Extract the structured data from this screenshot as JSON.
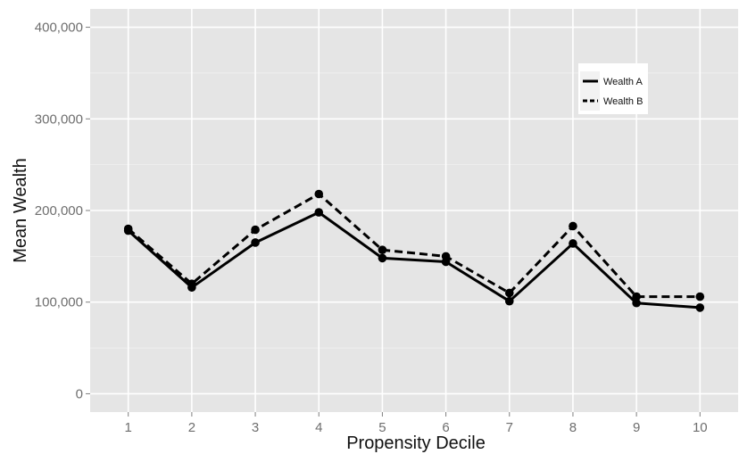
{
  "chart_data": {
    "type": "line",
    "title": "",
    "xlabel": "Propensity Decile",
    "ylabel": "Mean Wealth",
    "x": [
      1,
      2,
      3,
      4,
      5,
      6,
      7,
      8,
      9,
      10
    ],
    "x_tick_labels": [
      "1",
      "2",
      "3",
      "4",
      "5",
      "6",
      "7",
      "8",
      "9",
      "10"
    ],
    "y_ticks": [
      0,
      100000,
      200000,
      300000,
      400000
    ],
    "y_tick_labels": [
      "0",
      "100,000",
      "200,000",
      "300,000",
      "400,000"
    ],
    "ylim": [
      -20000,
      420000
    ],
    "xlim": [
      0.4,
      10.6
    ],
    "grid": true,
    "legend_position": "top-right",
    "series": [
      {
        "name": "Wealth A",
        "line_style": "solid",
        "color": "#000000",
        "values": [
          178000,
          116000,
          165000,
          198000,
          148000,
          144000,
          101000,
          164000,
          99000,
          94000
        ]
      },
      {
        "name": "Wealth B",
        "line_style": "dashed",
        "color": "#000000",
        "values": [
          180000,
          120000,
          179000,
          218000,
          157000,
          150000,
          110000,
          183000,
          106000,
          106000
        ]
      }
    ]
  },
  "colors": {
    "panel_background": "#e5e5e5",
    "grid_major": "#ffffff",
    "grid_minor": "#f2f2f2",
    "tick_text": "#6e6e6e",
    "title_text": "#111111"
  }
}
